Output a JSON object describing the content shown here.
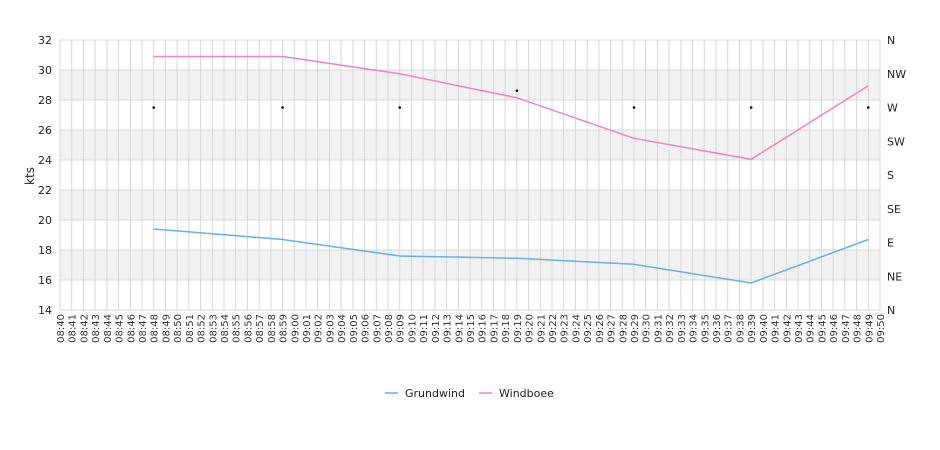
{
  "chart_data": {
    "type": "line",
    "ylabel": "kts",
    "ylim": [
      14,
      32
    ],
    "yticks": [
      "14",
      "16",
      "18",
      "20",
      "22",
      "24",
      "26",
      "28",
      "30",
      "32"
    ],
    "right_axis": {
      "ticks": [
        "N",
        "NE",
        "E",
        "SE",
        "S",
        "SW",
        "W",
        "NW",
        "N"
      ],
      "range_degrees": [
        0,
        360
      ]
    },
    "x_start": "08:40",
    "x_end": "09:50",
    "x_labels": [
      "08:40",
      "08:41",
      "08:42",
      "08:43",
      "08:44",
      "08:45",
      "08:46",
      "08:47",
      "08:48",
      "08:49",
      "08:50",
      "08:51",
      "08:52",
      "08:53",
      "08:54",
      "08:55",
      "08:56",
      "08:57",
      "08:58",
      "08:59",
      "09:00",
      "09:01",
      "09:02",
      "09:03",
      "09:04",
      "09:05",
      "09:06",
      "09:07",
      "09:08",
      "09:09",
      "09:10",
      "09:11",
      "09:12",
      "09:13",
      "09:14",
      "09:15",
      "09:16",
      "09:17",
      "09:18",
      "09:19",
      "09:20",
      "09:21",
      "09:22",
      "09:23",
      "09:24",
      "09:25",
      "09:26",
      "09:27",
      "09:28",
      "09:29",
      "09:30",
      "09:31",
      "09:32",
      "09:33",
      "09:34",
      "09:35",
      "09:36",
      "09:37",
      "09:38",
      "09:39",
      "09:40",
      "09:41",
      "09:42",
      "09:43",
      "09:44",
      "09:45",
      "09:46",
      "09:47",
      "09:48",
      "09:49",
      "09:50"
    ],
    "grid": true,
    "legend_position": "bottom-center",
    "series": [
      {
        "name": "Grundwind",
        "color": "#6aaeea",
        "points": [
          {
            "x": "08:48",
            "y": 19.4
          },
          {
            "x": "08:59",
            "y": 18.7
          },
          {
            "x": "09:09",
            "y": 17.6
          },
          {
            "x": "09:19",
            "y": 17.45
          },
          {
            "x": "09:29",
            "y": 17.05
          },
          {
            "x": "09:39",
            "y": 15.8
          },
          {
            "x": "09:49",
            "y": 18.7
          }
        ]
      },
      {
        "name": "Windboee",
        "color": "#ee88bb",
        "points": [
          {
            "x": "08:48",
            "y": 30.9
          },
          {
            "x": "08:59",
            "y": 30.9
          },
          {
            "x": "09:09",
            "y": 29.75
          },
          {
            "x": "09:19",
            "y": 28.15
          },
          {
            "x": "09:29",
            "y": 25.45
          },
          {
            "x": "09:39",
            "y": 24.05
          },
          {
            "x": "09:49",
            "y": 28.95
          }
        ]
      }
    ],
    "direction_markers": [
      {
        "x": "08:48",
        "deg": 270
      },
      {
        "x": "08:59",
        "deg": 270
      },
      {
        "x": "09:09",
        "deg": 270
      },
      {
        "x": "09:19",
        "deg": 292.5
      },
      {
        "x": "09:29",
        "deg": 270
      },
      {
        "x": "09:39",
        "deg": 270
      },
      {
        "x": "09:49",
        "deg": 270
      }
    ]
  }
}
